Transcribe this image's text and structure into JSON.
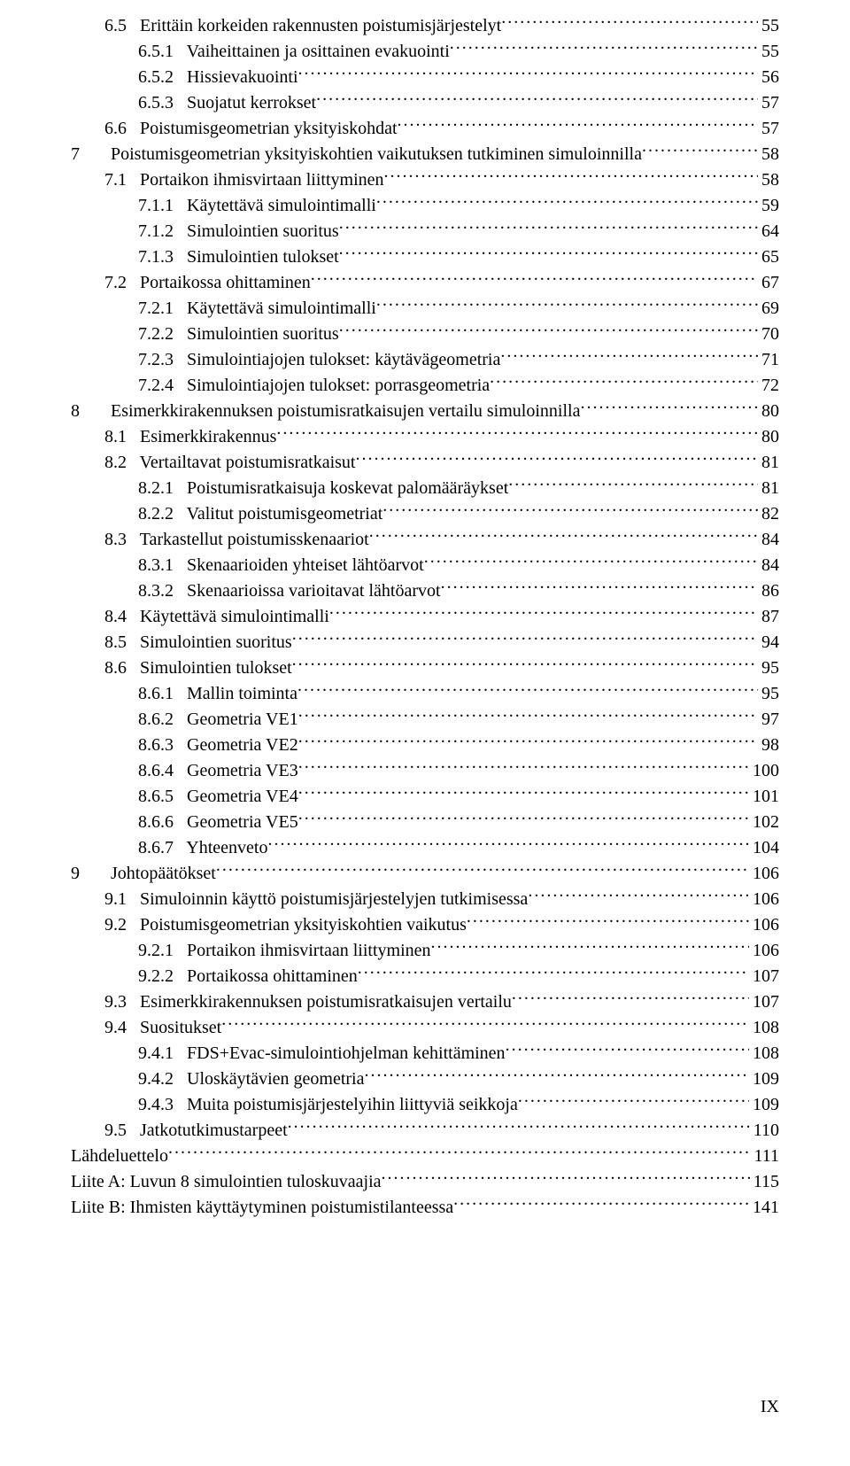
{
  "page_number_label": "IX",
  "font": {
    "family": "Times New Roman",
    "size_pt": 15,
    "color": "#000000"
  },
  "background_color": "#ffffff",
  "toc": [
    {
      "indent": 1,
      "num": "6.5",
      "title": "Erittäin korkeiden rakennusten poistumisjärjestelyt",
      "page": "55"
    },
    {
      "indent": 2,
      "num": "6.5.1",
      "title": "Vaiheittainen ja osittainen evakuointi",
      "page": "55"
    },
    {
      "indent": 2,
      "num": "6.5.2",
      "title": "Hissievakuointi",
      "page": "56"
    },
    {
      "indent": 2,
      "num": "6.5.3",
      "title": "Suojatut kerrokset",
      "page": "57"
    },
    {
      "indent": 1,
      "num": "6.6",
      "title": "Poistumisgeometrian yksityiskohdat",
      "page": "57"
    },
    {
      "indent": 0,
      "num": "7",
      "title": "Poistumisgeometrian yksityiskohtien vaikutuksen tutkiminen simuloinnilla",
      "page": "58"
    },
    {
      "indent": 1,
      "num": "7.1",
      "title": "Portaikon ihmisvirtaan liittyminen",
      "page": "58"
    },
    {
      "indent": 2,
      "num": "7.1.1",
      "title": "Käytettävä simulointimalli",
      "page": "59"
    },
    {
      "indent": 2,
      "num": "7.1.2",
      "title": "Simulointien suoritus",
      "page": "64"
    },
    {
      "indent": 2,
      "num": "7.1.3",
      "title": "Simulointien tulokset",
      "page": "65"
    },
    {
      "indent": 1,
      "num": "7.2",
      "title": "Portaikossa ohittaminen",
      "page": "67"
    },
    {
      "indent": 2,
      "num": "7.2.1",
      "title": "Käytettävä simulointimalli",
      "page": "69"
    },
    {
      "indent": 2,
      "num": "7.2.2",
      "title": "Simulointien suoritus",
      "page": "70"
    },
    {
      "indent": 2,
      "num": "7.2.3",
      "title": "Simulointiajojen tulokset: käytävägeometria",
      "page": "71"
    },
    {
      "indent": 2,
      "num": "7.2.4",
      "title": "Simulointiajojen tulokset: porrasgeometria",
      "page": "72"
    },
    {
      "indent": 0,
      "num": "8",
      "title": "Esimerkkirakennuksen poistumisratkaisujen vertailu simuloinnilla",
      "page": "80"
    },
    {
      "indent": 1,
      "num": "8.1",
      "title": "Esimerkkirakennus",
      "page": "80"
    },
    {
      "indent": 1,
      "num": "8.2",
      "title": "Vertailtavat poistumisratkaisut",
      "page": "81"
    },
    {
      "indent": 2,
      "num": "8.2.1",
      "title": "Poistumisratkaisuja koskevat palomääräykset",
      "page": "81"
    },
    {
      "indent": 2,
      "num": "8.2.2",
      "title": "Valitut poistumisgeometriat",
      "page": "82"
    },
    {
      "indent": 1,
      "num": "8.3",
      "title": "Tarkastellut poistumisskenaariot",
      "page": "84"
    },
    {
      "indent": 2,
      "num": "8.3.1",
      "title": "Skenaarioiden yhteiset lähtöarvot",
      "page": "84"
    },
    {
      "indent": 2,
      "num": "8.3.2",
      "title": "Skenaarioissa varioitavat lähtöarvot",
      "page": "86"
    },
    {
      "indent": 1,
      "num": "8.4",
      "title": "Käytettävä simulointimalli",
      "page": "87"
    },
    {
      "indent": 1,
      "num": "8.5",
      "title": "Simulointien suoritus",
      "page": "94"
    },
    {
      "indent": 1,
      "num": "8.6",
      "title": "Simulointien tulokset",
      "page": "95"
    },
    {
      "indent": 2,
      "num": "8.6.1",
      "title": "Mallin toiminta",
      "page": "95"
    },
    {
      "indent": 2,
      "num": "8.6.2",
      "title": "Geometria VE1",
      "page": "97"
    },
    {
      "indent": 2,
      "num": "8.6.3",
      "title": "Geometria VE2",
      "page": "98"
    },
    {
      "indent": 2,
      "num": "8.6.4",
      "title": "Geometria VE3",
      "page": "100"
    },
    {
      "indent": 2,
      "num": "8.6.5",
      "title": "Geometria VE4",
      "page": "101"
    },
    {
      "indent": 2,
      "num": "8.6.6",
      "title": "Geometria VE5",
      "page": "102"
    },
    {
      "indent": 2,
      "num": "8.6.7",
      "title": "Yhteenveto",
      "page": "104"
    },
    {
      "indent": 0,
      "num": "9",
      "title": "Johtopäätökset",
      "page": "106"
    },
    {
      "indent": 1,
      "num": "9.1",
      "title": "Simuloinnin käyttö poistumisjärjestelyjen tutkimisessa",
      "page": "106"
    },
    {
      "indent": 1,
      "num": "9.2",
      "title": "Poistumisgeometrian yksityiskohtien vaikutus",
      "page": "106"
    },
    {
      "indent": 2,
      "num": "9.2.1",
      "title": "Portaikon ihmisvirtaan liittyminen",
      "page": "106"
    },
    {
      "indent": 2,
      "num": "9.2.2",
      "title": "Portaikossa ohittaminen",
      "page": "107"
    },
    {
      "indent": 1,
      "num": "9.3",
      "title": "Esimerkkirakennuksen poistumisratkaisujen vertailu",
      "page": "107"
    },
    {
      "indent": 1,
      "num": "9.4",
      "title": "Suositukset",
      "page": "108"
    },
    {
      "indent": 2,
      "num": "9.4.1",
      "title": "FDS+Evac-simulointiohjelman kehittäminen",
      "page": "108"
    },
    {
      "indent": 2,
      "num": "9.4.2",
      "title": "Uloskäytävien geometria",
      "page": "109"
    },
    {
      "indent": 2,
      "num": "9.4.3",
      "title": "Muita poistumisjärjestelyihin liittyviä seikkoja",
      "page": "109"
    },
    {
      "indent": 1,
      "num": "9.5",
      "title": "Jatkotutkimustarpeet",
      "page": "110"
    },
    {
      "indent": 0,
      "num": "",
      "title": "Lähdeluettelo",
      "page": "111"
    },
    {
      "indent": 0,
      "num": "",
      "title": "Liite A: Luvun 8 simulointien tuloskuvaajia",
      "page": "115"
    },
    {
      "indent": 0,
      "num": "",
      "title": "Liite B: Ihmisten käyttäytyminen poistumistilanteessa",
      "page": "141"
    }
  ]
}
